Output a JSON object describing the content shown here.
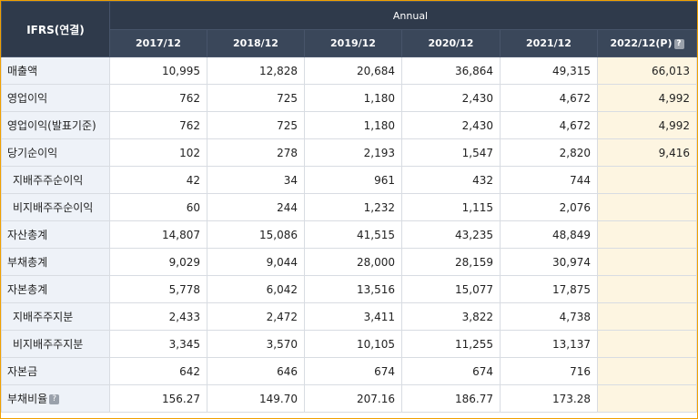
{
  "header": {
    "corner_label": "IFRS(연결)",
    "group_label": "Annual",
    "columns": [
      {
        "label": "2017/12",
        "has_help": false
      },
      {
        "label": "2018/12",
        "has_help": false
      },
      {
        "label": "2019/12",
        "has_help": false
      },
      {
        "label": "2020/12",
        "has_help": false
      },
      {
        "label": "2021/12",
        "has_help": false
      },
      {
        "label": "2022/12(P)",
        "has_help": true
      }
    ],
    "help_glyph": "?"
  },
  "rows": [
    {
      "label": "매출액",
      "indent": false,
      "help": false,
      "values": [
        "10,995",
        "12,828",
        "20,684",
        "36,864",
        "49,315",
        "66,013"
      ]
    },
    {
      "label": "영업이익",
      "indent": false,
      "help": false,
      "values": [
        "762",
        "725",
        "1,180",
        "2,430",
        "4,672",
        "4,992"
      ]
    },
    {
      "label": "영업이익(발표기준)",
      "indent": false,
      "help": false,
      "values": [
        "762",
        "725",
        "1,180",
        "2,430",
        "4,672",
        "4,992"
      ]
    },
    {
      "label": "당기순이익",
      "indent": false,
      "help": false,
      "values": [
        "102",
        "278",
        "2,193",
        "1,547",
        "2,820",
        "9,416"
      ]
    },
    {
      "label": "지배주주순이익",
      "indent": true,
      "help": false,
      "values": [
        "42",
        "34",
        "961",
        "432",
        "744",
        ""
      ]
    },
    {
      "label": "비지배주주순이익",
      "indent": true,
      "help": false,
      "values": [
        "60",
        "244",
        "1,232",
        "1,115",
        "2,076",
        ""
      ]
    },
    {
      "label": "자산총계",
      "indent": false,
      "help": false,
      "values": [
        "14,807",
        "15,086",
        "41,515",
        "43,235",
        "48,849",
        ""
      ]
    },
    {
      "label": "부채총계",
      "indent": false,
      "help": false,
      "values": [
        "9,029",
        "9,044",
        "28,000",
        "28,159",
        "30,974",
        ""
      ]
    },
    {
      "label": "자본총계",
      "indent": false,
      "help": false,
      "values": [
        "5,778",
        "6,042",
        "13,516",
        "15,077",
        "17,875",
        ""
      ]
    },
    {
      "label": "지배주주지분",
      "indent": true,
      "help": false,
      "values": [
        "2,433",
        "2,472",
        "3,411",
        "3,822",
        "4,738",
        ""
      ]
    },
    {
      "label": "비지배주주지분",
      "indent": true,
      "help": false,
      "values": [
        "3,345",
        "3,570",
        "10,105",
        "11,255",
        "13,137",
        ""
      ]
    },
    {
      "label": "자본금",
      "indent": false,
      "help": false,
      "values": [
        "642",
        "646",
        "674",
        "674",
        "716",
        ""
      ]
    },
    {
      "label": "부채비율",
      "indent": false,
      "help": true,
      "values": [
        "156.27",
        "149.70",
        "207.16",
        "186.77",
        "173.28",
        ""
      ]
    }
  ]
}
